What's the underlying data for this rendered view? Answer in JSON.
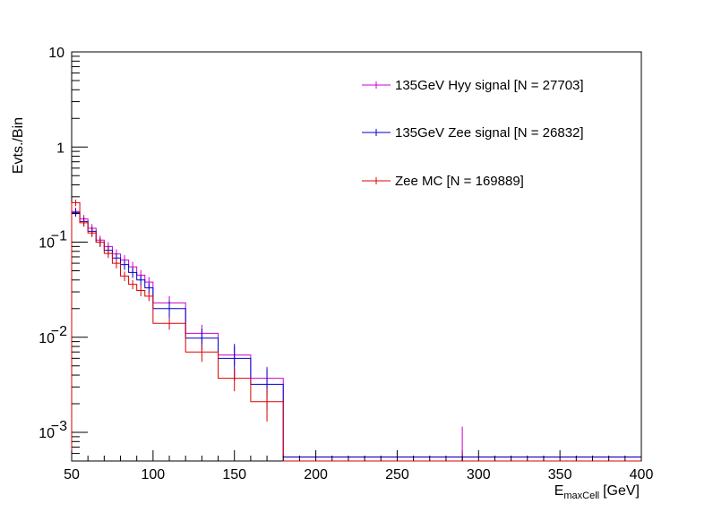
{
  "chart_data": {
    "type": "line",
    "style": "histogram-step",
    "title": "",
    "xlabel": "E",
    "xlabel_sub": "maxCell",
    "xlabel_unit": "[GeV]",
    "ylabel": "Evts./Bin",
    "xlim": [
      50,
      400
    ],
    "ylim": [
      0.0005,
      10
    ],
    "yscale": "log",
    "grid": false,
    "legend_position": "top-right",
    "x_tick_labels": [
      "50",
      "100",
      "150",
      "200",
      "250",
      "300",
      "350",
      "400"
    ],
    "x_ticks": [
      50,
      100,
      150,
      200,
      250,
      300,
      350,
      400
    ],
    "y_tick_labels": [
      {
        "value": 10,
        "base": "10",
        "exp": ""
      },
      {
        "value": 1,
        "base": "1",
        "exp": ""
      },
      {
        "value": 0.1,
        "base": "10",
        "exp": "−1"
      },
      {
        "value": 0.01,
        "base": "10",
        "exp": "−2"
      },
      {
        "value": 0.001,
        "base": "10",
        "exp": "−3"
      }
    ],
    "bin_edges": [
      50,
      55,
      60,
      65,
      70,
      75,
      80,
      85,
      90,
      95,
      100,
      120,
      140,
      160,
      180,
      400
    ],
    "series": [
      {
        "name": "135GeV Hyy signal [N = 27703]",
        "color": "#cc00cc",
        "values": [
          0.21,
          0.175,
          0.14,
          0.105,
          0.09,
          0.075,
          0.065,
          0.055,
          0.045,
          0.038,
          0.023,
          0.011,
          0.0065,
          0.0037,
          0.00055
        ],
        "errors": [
          0.02,
          0.018,
          0.015,
          0.012,
          0.01,
          0.009,
          0.008,
          0.007,
          0.006,
          0.005,
          0.004,
          0.0025,
          0.0015,
          0.0012,
          0.0001
        ]
      },
      {
        "name": "135GeV Zee signal [N = 26832]",
        "color": "#0000cc",
        "values": [
          0.205,
          0.165,
          0.13,
          0.1,
          0.082,
          0.068,
          0.058,
          0.048,
          0.04,
          0.033,
          0.02,
          0.0098,
          0.006,
          0.0032,
          0.00055
        ],
        "errors": [
          0.02,
          0.017,
          0.014,
          0.011,
          0.009,
          0.008,
          0.007,
          0.006,
          0.005,
          0.004,
          0.004,
          0.0025,
          0.0025,
          0.0015,
          0.0001
        ]
      },
      {
        "name": "Zee MC [N = 169889]",
        "color": "#dd0000",
        "values": [
          0.26,
          0.16,
          0.125,
          0.1,
          0.076,
          0.06,
          0.044,
          0.036,
          0.031,
          0.027,
          0.014,
          0.007,
          0.0037,
          0.0021,
          0.0005
        ],
        "errors": [
          0.02,
          0.015,
          0.012,
          0.01,
          0.008,
          0.007,
          0.005,
          0.004,
          0.004,
          0.003,
          0.002,
          0.0015,
          0.001,
          0.0008,
          0.0001
        ]
      }
    ],
    "spike": {
      "x": 290,
      "value": 0.00115,
      "color": "#cc00cc"
    }
  }
}
